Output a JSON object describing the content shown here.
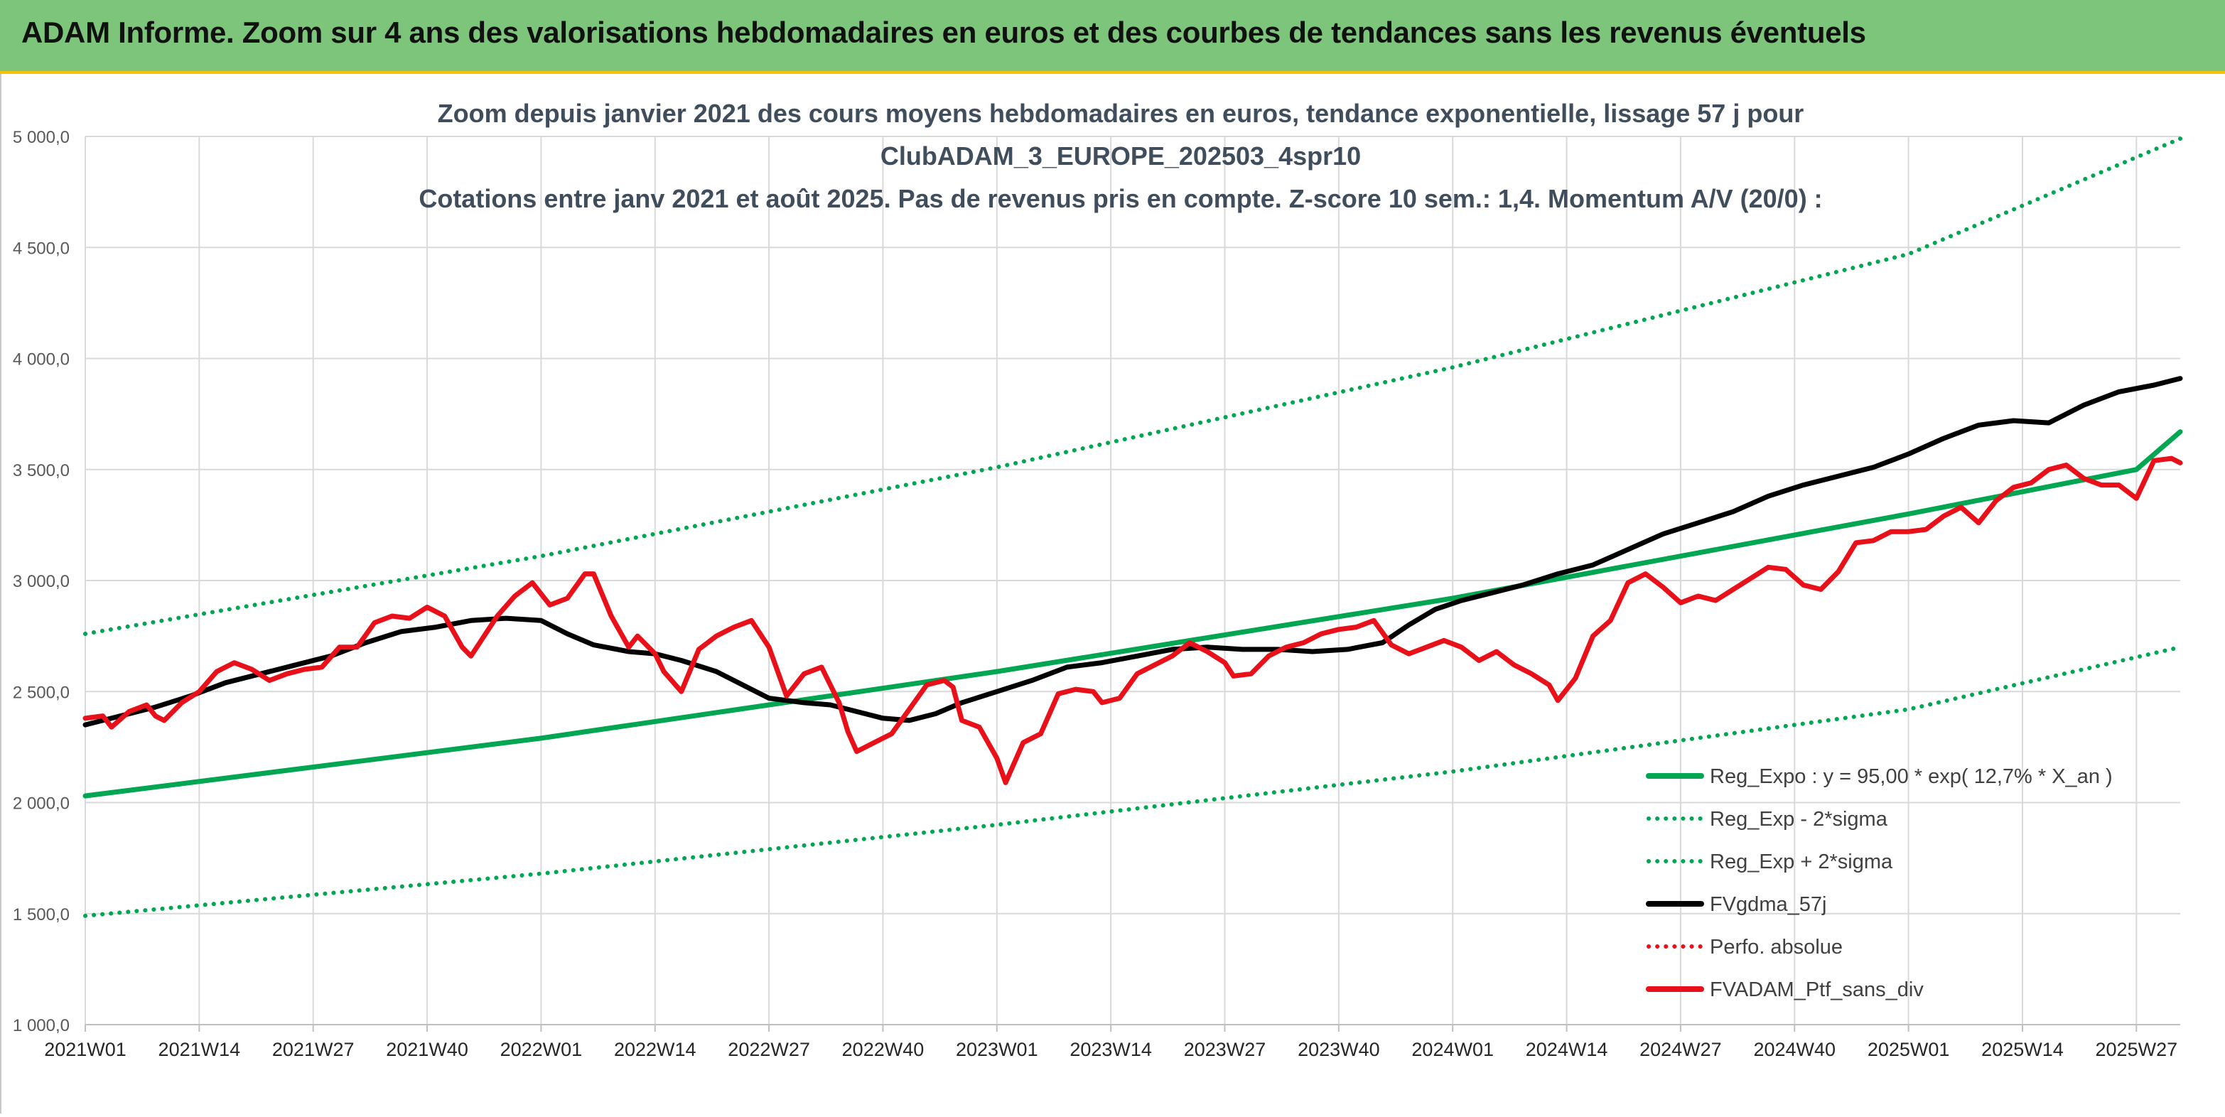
{
  "banner": {
    "title": "ADAM Informe. Zoom sur 4 ans des valorisations hebdomadaires en euros et des courbes de tendances sans les revenus éventuels"
  },
  "colors": {
    "banner_bg": "#7dc57a",
    "accent": "#f4c300",
    "trend_green": "#00a651",
    "series_red": "#e8111a",
    "series_black": "#000000"
  },
  "chart_data": {
    "type": "line",
    "title": [
      "Zoom depuis janvier 2021 des cours moyens hebdomadaires en euros, tendance exponentielle, lissage 57 j pour",
      "ClubADAM_3_EUROPE_202503_4spr10",
      "Cotations entre janv 2021 et août 2025. Pas de revenus pris en compte. Z-score 10 sem.: 1,4. Momentum A/V (20/0) :"
    ],
    "x_tick_labels": [
      "2021W01",
      "2021W14",
      "2021W27",
      "2021W40",
      "2022W01",
      "2022W14",
      "2022W27",
      "2022W40",
      "2023W01",
      "2023W14",
      "2023W27",
      "2023W40",
      "2024W01",
      "2024W14",
      "2024W27",
      "2024W40",
      "2025W01",
      "2025W14",
      "2025W27"
    ],
    "x_range_weeks": [
      0,
      239
    ],
    "y_tick_labels": [
      "1 000,0",
      "1 500,0",
      "2 000,0",
      "2 500,0",
      "3 000,0",
      "3 500,0",
      "4 000,0",
      "4 500,0",
      "5 000,0"
    ],
    "ylim": [
      1000,
      5000
    ],
    "grid": true,
    "legend_position": "bottom-right",
    "series": [
      {
        "name": "Reg_Expo : y = 95,00 * exp( 12,7% *  X_an )",
        "style": "solid",
        "color": "#00a651",
        "points": [
          [
            0,
            2030
          ],
          [
            52,
            2290
          ],
          [
            104,
            2590
          ],
          [
            156,
            2920
          ],
          [
            208,
            3300
          ],
          [
            234,
            3500
          ],
          [
            239,
            3670
          ]
        ]
      },
      {
        "name": "Reg_Exp - 2*sigma",
        "style": "dotted",
        "color": "#00a651",
        "points": [
          [
            0,
            1490
          ],
          [
            52,
            1680
          ],
          [
            104,
            1900
          ],
          [
            156,
            2140
          ],
          [
            208,
            2420
          ],
          [
            239,
            2700
          ]
        ]
      },
      {
        "name": "Reg_Exp + 2*sigma",
        "style": "dotted",
        "color": "#00a651",
        "points": [
          [
            0,
            2760
          ],
          [
            52,
            3110
          ],
          [
            104,
            3510
          ],
          [
            156,
            3960
          ],
          [
            208,
            4470
          ],
          [
            239,
            4990
          ]
        ]
      },
      {
        "name": "FVgdma_57j",
        "style": "solid",
        "color": "#000000",
        "points": [
          [
            0,
            2350
          ],
          [
            4,
            2390
          ],
          [
            8,
            2430
          ],
          [
            12,
            2480
          ],
          [
            16,
            2540
          ],
          [
            20,
            2580
          ],
          [
            24,
            2620
          ],
          [
            28,
            2660
          ],
          [
            32,
            2720
          ],
          [
            36,
            2770
          ],
          [
            40,
            2790
          ],
          [
            44,
            2820
          ],
          [
            48,
            2830
          ],
          [
            52,
            2820
          ],
          [
            55,
            2760
          ],
          [
            58,
            2710
          ],
          [
            62,
            2680
          ],
          [
            65,
            2670
          ],
          [
            68,
            2640
          ],
          [
            72,
            2590
          ],
          [
            75,
            2530
          ],
          [
            78,
            2470
          ],
          [
            82,
            2450
          ],
          [
            85,
            2440
          ],
          [
            88,
            2410
          ],
          [
            91,
            2380
          ],
          [
            94,
            2370
          ],
          [
            97,
            2400
          ],
          [
            100,
            2450
          ],
          [
            104,
            2500
          ],
          [
            108,
            2550
          ],
          [
            112,
            2610
          ],
          [
            116,
            2630
          ],
          [
            120,
            2660
          ],
          [
            124,
            2690
          ],
          [
            128,
            2700
          ],
          [
            132,
            2690
          ],
          [
            136,
            2690
          ],
          [
            140,
            2680
          ],
          [
            144,
            2690
          ],
          [
            148,
            2720
          ],
          [
            151,
            2800
          ],
          [
            154,
            2870
          ],
          [
            157,
            2910
          ],
          [
            160,
            2940
          ],
          [
            164,
            2980
          ],
          [
            168,
            3030
          ],
          [
            172,
            3070
          ],
          [
            176,
            3140
          ],
          [
            180,
            3210
          ],
          [
            184,
            3260
          ],
          [
            188,
            3310
          ],
          [
            192,
            3380
          ],
          [
            196,
            3430
          ],
          [
            200,
            3470
          ],
          [
            204,
            3510
          ],
          [
            208,
            3570
          ],
          [
            212,
            3640
          ],
          [
            216,
            3700
          ],
          [
            220,
            3720
          ],
          [
            224,
            3710
          ],
          [
            228,
            3790
          ],
          [
            232,
            3850
          ],
          [
            236,
            3880
          ],
          [
            239,
            3910
          ]
        ]
      },
      {
        "name": "Perfo. absolue",
        "style": "dotted",
        "color": "#e8111a",
        "points": []
      },
      {
        "name": "FVADAM_Ptf_sans_div",
        "style": "solid",
        "color": "#e8111a",
        "points": [
          [
            0,
            2380
          ],
          [
            2,
            2390
          ],
          [
            3,
            2340
          ],
          [
            5,
            2410
          ],
          [
            7,
            2440
          ],
          [
            8,
            2390
          ],
          [
            9,
            2370
          ],
          [
            11,
            2450
          ],
          [
            13,
            2500
          ],
          [
            15,
            2590
          ],
          [
            17,
            2630
          ],
          [
            19,
            2600
          ],
          [
            21,
            2550
          ],
          [
            23,
            2580
          ],
          [
            25,
            2600
          ],
          [
            27,
            2610
          ],
          [
            29,
            2700
          ],
          [
            31,
            2700
          ],
          [
            33,
            2810
          ],
          [
            35,
            2840
          ],
          [
            37,
            2830
          ],
          [
            39,
            2880
          ],
          [
            41,
            2840
          ],
          [
            43,
            2700
          ],
          [
            44,
            2660
          ],
          [
            45,
            2720
          ],
          [
            47,
            2840
          ],
          [
            49,
            2930
          ],
          [
            51,
            2990
          ],
          [
            53,
            2890
          ],
          [
            55,
            2920
          ],
          [
            57,
            3030
          ],
          [
            58,
            3030
          ],
          [
            60,
            2840
          ],
          [
            62,
            2700
          ],
          [
            63,
            2750
          ],
          [
            65,
            2670
          ],
          [
            66,
            2590
          ],
          [
            68,
            2500
          ],
          [
            70,
            2690
          ],
          [
            72,
            2750
          ],
          [
            74,
            2790
          ],
          [
            76,
            2820
          ],
          [
            78,
            2700
          ],
          [
            80,
            2480
          ],
          [
            82,
            2580
          ],
          [
            84,
            2610
          ],
          [
            86,
            2450
          ],
          [
            87,
            2320
          ],
          [
            88,
            2230
          ],
          [
            90,
            2270
          ],
          [
            92,
            2310
          ],
          [
            94,
            2420
          ],
          [
            96,
            2530
          ],
          [
            98,
            2550
          ],
          [
            99,
            2520
          ],
          [
            100,
            2370
          ],
          [
            102,
            2340
          ],
          [
            104,
            2200
          ],
          [
            105,
            2090
          ],
          [
            107,
            2270
          ],
          [
            109,
            2310
          ],
          [
            111,
            2490
          ],
          [
            113,
            2510
          ],
          [
            115,
            2500
          ],
          [
            116,
            2450
          ],
          [
            118,
            2470
          ],
          [
            120,
            2580
          ],
          [
            122,
            2620
          ],
          [
            124,
            2660
          ],
          [
            126,
            2720
          ],
          [
            128,
            2680
          ],
          [
            130,
            2630
          ],
          [
            131,
            2570
          ],
          [
            133,
            2580
          ],
          [
            135,
            2660
          ],
          [
            137,
            2700
          ],
          [
            139,
            2720
          ],
          [
            141,
            2760
          ],
          [
            143,
            2780
          ],
          [
            145,
            2790
          ],
          [
            147,
            2820
          ],
          [
            149,
            2710
          ],
          [
            151,
            2670
          ],
          [
            153,
            2700
          ],
          [
            155,
            2730
          ],
          [
            157,
            2700
          ],
          [
            159,
            2640
          ],
          [
            161,
            2680
          ],
          [
            163,
            2620
          ],
          [
            165,
            2580
          ],
          [
            167,
            2530
          ],
          [
            168,
            2460
          ],
          [
            170,
            2560
          ],
          [
            172,
            2750
          ],
          [
            174,
            2820
          ],
          [
            176,
            2990
          ],
          [
            178,
            3030
          ],
          [
            180,
            2970
          ],
          [
            182,
            2900
          ],
          [
            184,
            2930
          ],
          [
            186,
            2910
          ],
          [
            188,
            2960
          ],
          [
            190,
            3010
          ],
          [
            192,
            3060
          ],
          [
            194,
            3050
          ],
          [
            196,
            2980
          ],
          [
            198,
            2960
          ],
          [
            200,
            3040
          ],
          [
            202,
            3170
          ],
          [
            204,
            3180
          ],
          [
            206,
            3220
          ],
          [
            208,
            3220
          ],
          [
            210,
            3230
          ],
          [
            212,
            3290
          ],
          [
            214,
            3330
          ],
          [
            216,
            3260
          ],
          [
            218,
            3360
          ],
          [
            220,
            3420
          ],
          [
            222,
            3440
          ],
          [
            224,
            3500
          ],
          [
            226,
            3520
          ],
          [
            228,
            3460
          ],
          [
            230,
            3430
          ],
          [
            232,
            3430
          ],
          [
            234,
            3370
          ],
          [
            236,
            3540
          ],
          [
            238,
            3550
          ],
          [
            239,
            3530
          ]
        ]
      }
    ]
  }
}
